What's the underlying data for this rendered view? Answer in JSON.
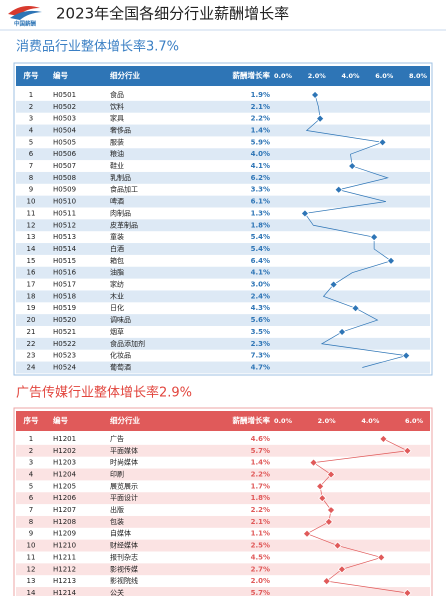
{
  "header": {
    "logo_text": "中国薪酬",
    "title": "2023年全国各细分行业薪酬增长率"
  },
  "sections": [
    {
      "title": "消费品行业整体增长率3.7%",
      "columns": [
        "序号",
        "编号",
        "细分行业",
        "薪酬增长率"
      ],
      "xlim": [
        0,
        8
      ],
      "xticks": [
        {
          "value": 0,
          "label": "0.0%"
        },
        {
          "value": 2,
          "label": "2.0%"
        },
        {
          "value": 4,
          "label": "4.0%"
        },
        {
          "value": 6,
          "label": "6.0%"
        },
        {
          "value": 8,
          "label": "8.0%"
        }
      ],
      "rows": [
        {
          "no": 1,
          "code": "H0501",
          "name": "食品",
          "value": 1.9,
          "value_label": "1.9%"
        },
        {
          "no": 2,
          "code": "H0502",
          "name": "饮料",
          "value": 2.1,
          "value_label": "2.1%"
        },
        {
          "no": 3,
          "code": "H0503",
          "name": "家具",
          "value": 2.2,
          "value_label": "2.2%"
        },
        {
          "no": 4,
          "code": "H0504",
          "name": "奢侈品",
          "value": 1.4,
          "value_label": "1.4%"
        },
        {
          "no": 5,
          "code": "H0505",
          "name": "服装",
          "value": 5.9,
          "value_label": "5.9%"
        },
        {
          "no": 6,
          "code": "H0506",
          "name": "粮油",
          "value": 4.0,
          "value_label": "4.0%"
        },
        {
          "no": 7,
          "code": "H0507",
          "name": "鞋业",
          "value": 4.1,
          "value_label": "4.1%"
        },
        {
          "no": 8,
          "code": "H0508",
          "name": "乳制品",
          "value": 6.2,
          "value_label": "6.2%"
        },
        {
          "no": 9,
          "code": "H0509",
          "name": "食品加工",
          "value": 3.3,
          "value_label": "3.3%"
        },
        {
          "no": 10,
          "code": "H0510",
          "name": "啤酒",
          "value": 6.1,
          "value_label": "6.1%"
        },
        {
          "no": 11,
          "code": "H0511",
          "name": "肉制品",
          "value": 1.3,
          "value_label": "1.3%"
        },
        {
          "no": 12,
          "code": "H0512",
          "name": "皮革制品",
          "value": 1.8,
          "value_label": "1.8%"
        },
        {
          "no": 13,
          "code": "H0513",
          "name": "童装",
          "value": 5.4,
          "value_label": "5.4%"
        },
        {
          "no": 14,
          "code": "H0514",
          "name": "白酒",
          "value": 5.4,
          "value_label": "5.4%"
        },
        {
          "no": 15,
          "code": "H0515",
          "name": "箱包",
          "value": 6.4,
          "value_label": "6.4%"
        },
        {
          "no": 16,
          "code": "H0516",
          "name": "油脂",
          "value": 4.1,
          "value_label": "4.1%"
        },
        {
          "no": 17,
          "code": "H0517",
          "name": "家纺",
          "value": 3.0,
          "value_label": "3.0%"
        },
        {
          "no": 18,
          "code": "H0518",
          "name": "木业",
          "value": 2.4,
          "value_label": "2.4%"
        },
        {
          "no": 19,
          "code": "H0519",
          "name": "日化",
          "value": 4.3,
          "value_label": "4.3%"
        },
        {
          "no": 20,
          "code": "H0520",
          "name": "调味品",
          "value": 5.6,
          "value_label": "5.6%"
        },
        {
          "no": 21,
          "code": "H0521",
          "name": "烟草",
          "value": 3.5,
          "value_label": "3.5%"
        },
        {
          "no": 22,
          "code": "H0522",
          "name": "食品添加剂",
          "value": 2.3,
          "value_label": "2.3%"
        },
        {
          "no": 23,
          "code": "H0523",
          "name": "化妆品",
          "value": 7.3,
          "value_label": "7.3%"
        },
        {
          "no": 24,
          "code": "H0524",
          "name": "葡萄酒",
          "value": 4.7,
          "value_label": "4.7%"
        }
      ]
    },
    {
      "title": "广告传媒行业整体增长率2.9%",
      "columns": [
        "序号",
        "编号",
        "细分行业",
        "薪酬增长率"
      ],
      "xlim": [
        0,
        6
      ],
      "xticks": [
        {
          "value": 0,
          "label": "0.0%"
        },
        {
          "value": 2,
          "label": "2.0%"
        },
        {
          "value": 4,
          "label": "4.0%"
        },
        {
          "value": 6,
          "label": "6.0%"
        }
      ],
      "rows": [
        {
          "no": 1,
          "code": "H1201",
          "name": "广告",
          "value": 4.6,
          "value_label": "4.6%"
        },
        {
          "no": 2,
          "code": "H1202",
          "name": "平面媒体",
          "value": 5.7,
          "value_label": "5.7%"
        },
        {
          "no": 3,
          "code": "H1203",
          "name": "时尚媒体",
          "value": 1.4,
          "value_label": "1.4%"
        },
        {
          "no": 4,
          "code": "H1204",
          "name": "印刷",
          "value": 2.2,
          "value_label": "2.2%"
        },
        {
          "no": 5,
          "code": "H1205",
          "name": "展览展示",
          "value": 1.7,
          "value_label": "1.7%"
        },
        {
          "no": 6,
          "code": "H1206",
          "name": "平面设计",
          "value": 1.8,
          "value_label": "1.8%"
        },
        {
          "no": 7,
          "code": "H1207",
          "name": "出版",
          "value": 2.2,
          "value_label": "2.2%"
        },
        {
          "no": 8,
          "code": "H1208",
          "name": "包装",
          "value": 2.1,
          "value_label": "2.1%"
        },
        {
          "no": 9,
          "code": "H1209",
          "name": "自媒体",
          "value": 1.1,
          "value_label": "1.1%"
        },
        {
          "no": 10,
          "code": "H1210",
          "name": "财经媒体",
          "value": 2.5,
          "value_label": "2.5%"
        },
        {
          "no": 11,
          "code": "H1211",
          "name": "报刊杂志",
          "value": 4.5,
          "value_label": "4.5%"
        },
        {
          "no": 12,
          "code": "H1212",
          "name": "影视传媒",
          "value": 2.7,
          "value_label": "2.7%"
        },
        {
          "no": 13,
          "code": "H1213",
          "name": "影视院线",
          "value": 2.0,
          "value_label": "2.0%"
        },
        {
          "no": 14,
          "code": "H1214",
          "name": "公关",
          "value": 5.7,
          "value_label": "5.7%"
        }
      ]
    }
  ]
}
